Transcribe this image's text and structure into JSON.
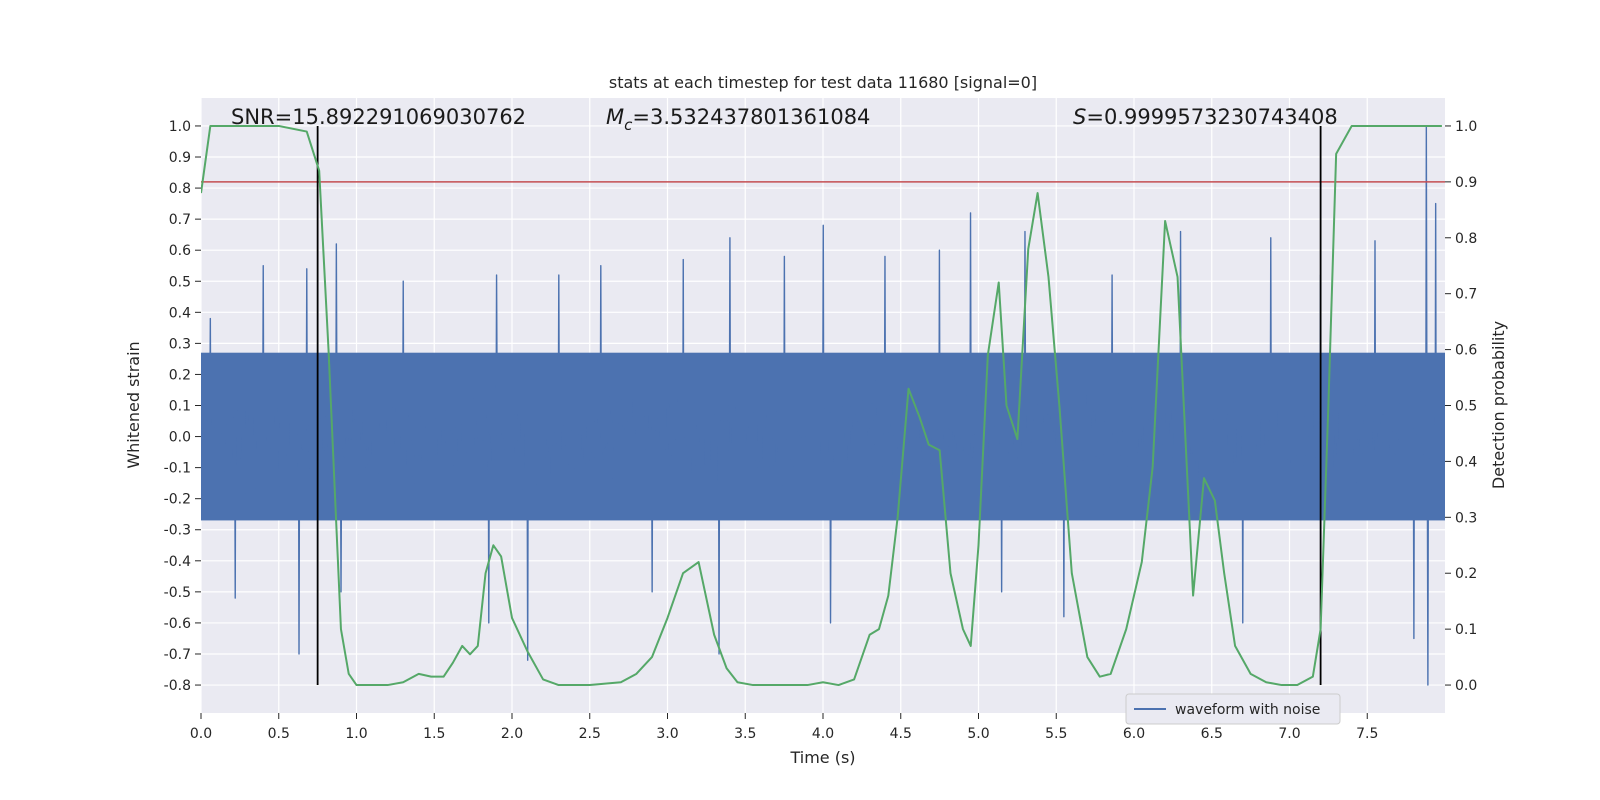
{
  "chart_data": {
    "type": "line",
    "title": "stats at each timestep for test data 11680 [signal=0]",
    "xlabel": "Time (s)",
    "ylabel": "Whitened strain",
    "y2label": "Detection probability",
    "xlim": [
      0,
      8
    ],
    "ylim": [
      -0.89,
      1.09
    ],
    "y2lim": [
      -0.05,
      1.05
    ],
    "xticks": [
      0.0,
      0.5,
      1.0,
      1.5,
      2.0,
      2.5,
      3.0,
      3.5,
      4.0,
      4.5,
      5.0,
      5.5,
      6.0,
      6.5,
      7.0,
      7.5
    ],
    "yticks": [
      1.0,
      0.9,
      0.8,
      0.7,
      0.6,
      0.5,
      0.4,
      0.3,
      0.2,
      0.1,
      0.0,
      -0.1,
      -0.2,
      -0.3,
      -0.4,
      -0.5,
      -0.6,
      -0.7,
      -0.8
    ],
    "y2ticks": [
      1.0,
      0.9,
      0.8,
      0.7,
      0.6,
      0.5,
      0.4,
      0.3,
      0.2,
      0.1,
      0.0
    ],
    "grid": true,
    "legend": {
      "position": "bottom-right",
      "entries": [
        "waveform with noise"
      ]
    },
    "annotations": {
      "snr": "SNR=15.892291069030762",
      "mc_prefix": "M",
      "mc_sub": "c",
      "mc_value": "=3.532437801361084",
      "s_prefix": "S",
      "s_value": "=0.9999573230743408"
    },
    "threshold": {
      "axis": "y2",
      "value": 0.9,
      "color": "#c44e52"
    },
    "vlines": [
      0.75,
      7.2
    ],
    "colors": {
      "waveform": "#4c72b0",
      "probability": "#55a868",
      "background": "#eaeaf2",
      "vline": "#000000"
    },
    "series": [
      {
        "name": "waveform with noise",
        "axis": "y",
        "kind": "noise",
        "typical_amplitude": 0.27,
        "peak_positive": 1.0,
        "peak_negative": -0.8,
        "peaks": [
          [
            0.06,
            0.38
          ],
          [
            0.22,
            -0.52
          ],
          [
            0.4,
            0.55
          ],
          [
            0.63,
            -0.7
          ],
          [
            0.68,
            0.54
          ],
          [
            0.87,
            0.62
          ],
          [
            0.9,
            -0.5
          ],
          [
            1.3,
            0.5
          ],
          [
            1.85,
            -0.6
          ],
          [
            1.9,
            0.52
          ],
          [
            2.1,
            -0.72
          ],
          [
            2.3,
            0.52
          ],
          [
            2.57,
            0.55
          ],
          [
            2.9,
            -0.5
          ],
          [
            3.1,
            0.57
          ],
          [
            3.33,
            -0.7
          ],
          [
            3.4,
            0.64
          ],
          [
            3.75,
            0.58
          ],
          [
            4.0,
            0.68
          ],
          [
            4.05,
            -0.6
          ],
          [
            4.4,
            0.58
          ],
          [
            4.75,
            0.6
          ],
          [
            4.95,
            0.72
          ],
          [
            5.15,
            -0.5
          ],
          [
            5.3,
            0.66
          ],
          [
            5.55,
            -0.58
          ],
          [
            5.86,
            0.52
          ],
          [
            6.3,
            -0.6
          ],
          [
            6.3,
            0.66
          ],
          [
            6.7,
            -0.6
          ],
          [
            6.88,
            0.64
          ],
          [
            7.2,
            0.52
          ],
          [
            7.55,
            0.63
          ],
          [
            7.8,
            -0.65
          ],
          [
            7.88,
            1.0
          ],
          [
            7.89,
            -0.8
          ],
          [
            7.94,
            0.75
          ]
        ]
      },
      {
        "name": "",
        "axis": "y2",
        "x": [
          0.0,
          0.06,
          0.12,
          0.3,
          0.5,
          0.68,
          0.76,
          0.82,
          0.9,
          0.95,
          1.0,
          1.1,
          1.2,
          1.3,
          1.4,
          1.48,
          1.56,
          1.62,
          1.68,
          1.73,
          1.78,
          1.83,
          1.88,
          1.93,
          2.0,
          2.1,
          2.2,
          2.3,
          2.5,
          2.7,
          2.8,
          2.9,
          3.0,
          3.1,
          3.2,
          3.3,
          3.38,
          3.45,
          3.55,
          3.7,
          3.9,
          4.0,
          4.1,
          4.2,
          4.25,
          4.3,
          4.36,
          4.42,
          4.48,
          4.55,
          4.62,
          4.68,
          4.75,
          4.82,
          4.9,
          4.95,
          5.0,
          5.06,
          5.13,
          5.18,
          5.25,
          5.32,
          5.38,
          5.45,
          5.52,
          5.6,
          5.7,
          5.78,
          5.85,
          5.95,
          6.05,
          6.12,
          6.2,
          6.28,
          6.38,
          6.45,
          6.52,
          6.58,
          6.65,
          6.75,
          6.85,
          6.95,
          7.05,
          7.15,
          7.2,
          7.25,
          7.3,
          7.4,
          7.6,
          7.8,
          7.9,
          7.98
        ],
        "values": [
          0.88,
          1.0,
          1.0,
          1.0,
          1.0,
          0.99,
          0.92,
          0.6,
          0.1,
          0.02,
          0.0,
          0.0,
          0.0,
          0.005,
          0.02,
          0.015,
          0.015,
          0.04,
          0.07,
          0.055,
          0.07,
          0.2,
          0.25,
          0.23,
          0.12,
          0.06,
          0.01,
          0.0,
          0.0,
          0.005,
          0.02,
          0.05,
          0.12,
          0.2,
          0.22,
          0.09,
          0.03,
          0.005,
          0.0,
          0.0,
          0.0,
          0.005,
          0.0,
          0.01,
          0.05,
          0.09,
          0.1,
          0.16,
          0.3,
          0.53,
          0.48,
          0.43,
          0.42,
          0.2,
          0.1,
          0.07,
          0.25,
          0.59,
          0.72,
          0.5,
          0.44,
          0.78,
          0.88,
          0.73,
          0.5,
          0.2,
          0.05,
          0.015,
          0.02,
          0.1,
          0.22,
          0.39,
          0.83,
          0.73,
          0.16,
          0.37,
          0.33,
          0.2,
          0.07,
          0.02,
          0.005,
          0.0,
          0.0,
          0.015,
          0.1,
          0.5,
          0.95,
          1.0,
          1.0,
          1.0,
          1.0,
          1.0
        ]
      }
    ]
  }
}
